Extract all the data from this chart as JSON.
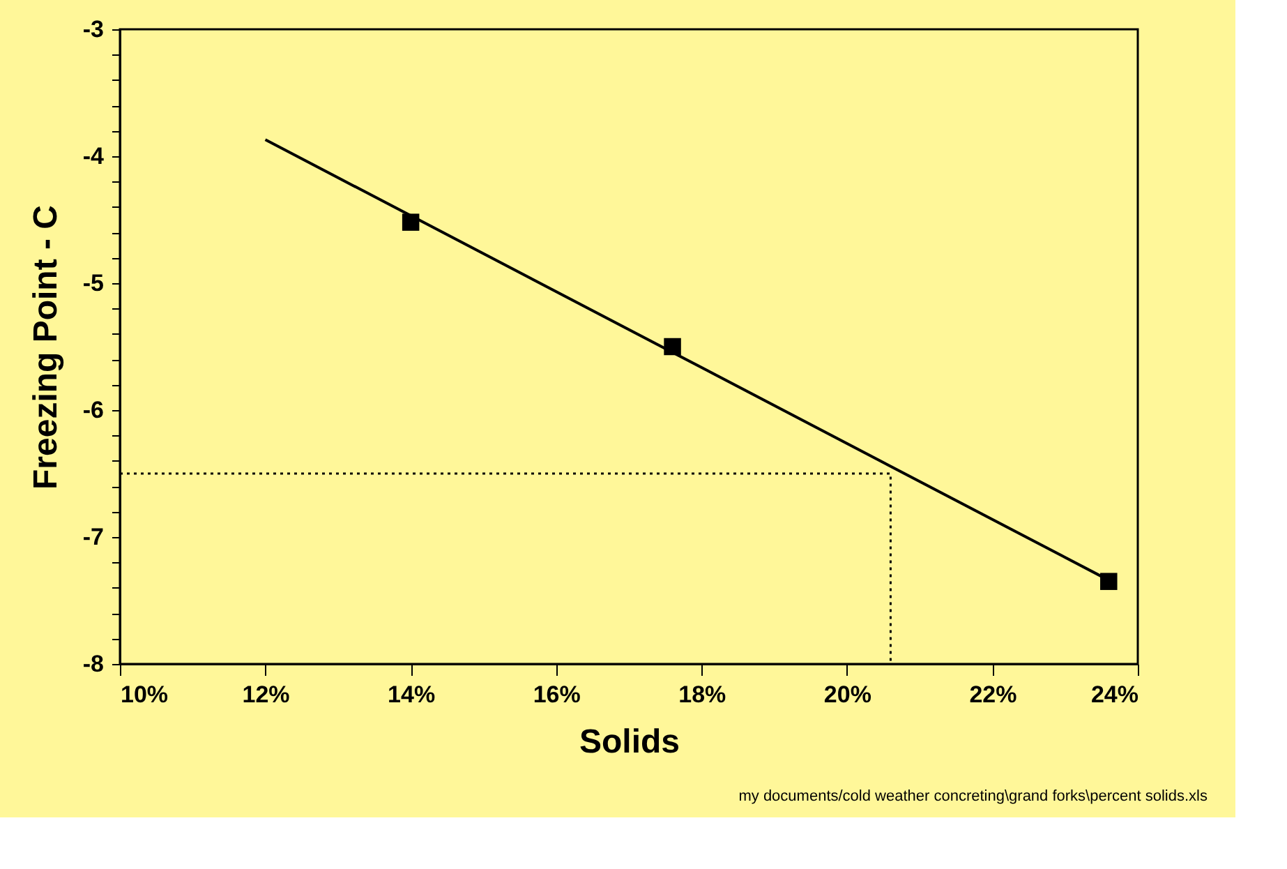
{
  "chart_data": {
    "type": "scatter",
    "xlabel": "Solids",
    "ylabel": "Freezing Point - C",
    "xlim": [
      10,
      24
    ],
    "ylim": [
      -8,
      -3
    ],
    "xticks": [
      {
        "value": 10,
        "label": "10%"
      },
      {
        "value": 12,
        "label": "12%"
      },
      {
        "value": 14,
        "label": "14%"
      },
      {
        "value": 16,
        "label": "16%"
      },
      {
        "value": 18,
        "label": "18%"
      },
      {
        "value": 20,
        "label": "20%"
      },
      {
        "value": 22,
        "label": "22%"
      },
      {
        "value": 24,
        "label": "24%"
      }
    ],
    "yticks": [
      -8,
      {
        "value": -7.8,
        "label": null
      },
      {
        "value": -7.6,
        "label": null
      },
      {
        "value": -7.4,
        "label": null
      },
      {
        "value": -7.2,
        "label": null
      },
      -7,
      {
        "value": -6.8,
        "label": null
      },
      {
        "value": -6.6,
        "label": null
      },
      {
        "value": -6.4,
        "label": null
      },
      {
        "value": -6.2,
        "label": null
      },
      -6,
      {
        "value": -5.8,
        "label": null
      },
      {
        "value": -5.6,
        "label": null
      },
      {
        "value": -5.4,
        "label": null
      },
      {
        "value": -5.2,
        "label": null
      },
      -5,
      {
        "value": -4.8,
        "label": null
      },
      {
        "value": -4.6,
        "label": null
      },
      {
        "value": -4.4,
        "label": null
      },
      {
        "value": -4.2,
        "label": null
      },
      -4,
      {
        "value": -3.8,
        "label": null
      },
      {
        "value": -3.6,
        "label": null
      },
      {
        "value": -3.4,
        "label": null
      },
      {
        "value": -3.2,
        "label": null
      },
      -3
    ],
    "grid": false,
    "series": [
      {
        "type": "line",
        "color": "#000000",
        "line_style": "solid",
        "marker": "none",
        "x": [
          12,
          23.6
        ],
        "values": [
          -3.87,
          -7.34
        ]
      },
      {
        "type": "line",
        "color": "#000000",
        "line_style": "dotted",
        "marker": "none",
        "x": [
          10,
          20.6,
          20.6
        ],
        "values": [
          -6.5,
          -6.5,
          -8
        ]
      },
      {
        "color": "#000000",
        "marker": "square",
        "x": [
          14.0,
          17.6,
          23.6
        ],
        "values": [
          -4.52,
          -5.5,
          -7.35
        ]
      }
    ],
    "annotations": [
      "my documents/cold weather concreting\\grand forks\\percent solids.xls"
    ]
  }
}
